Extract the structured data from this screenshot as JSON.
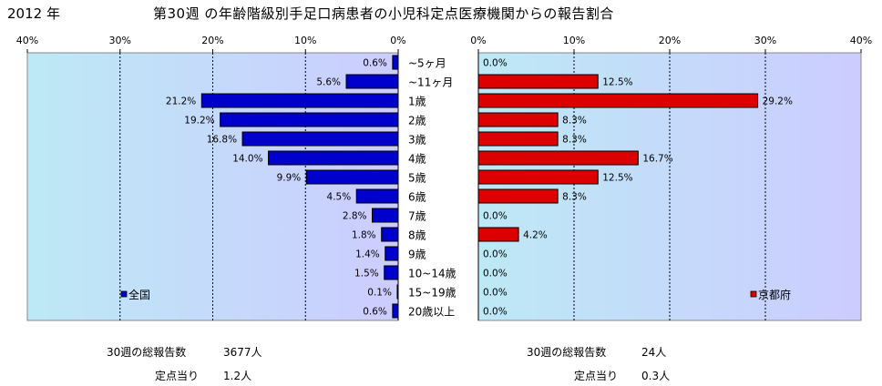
{
  "header": {
    "year": "2012 年",
    "title": "第30週 の年齢階級別手足口病患者の小児科定点医療機関からの報告割合"
  },
  "chart_data": [
    {
      "type": "bar",
      "orientation": "horizontal",
      "direction": "reversed",
      "categories": [
        "~5ヶ月",
        "~11ヶ月",
        "1歳",
        "2歳",
        "3歳",
        "4歳",
        "5歳",
        "6歳",
        "7歳",
        "8歳",
        "9歳",
        "10~14歳",
        "15~19歳",
        "20歳以上"
      ],
      "series": [
        {
          "name": "全国",
          "values": [
            0.6,
            5.6,
            21.2,
            19.2,
            16.8,
            14.0,
            9.9,
            4.5,
            2.8,
            1.8,
            1.4,
            1.5,
            0.1,
            0.6
          ],
          "labels": [
            "0.6%",
            "5.6%",
            "21.2%",
            "19.2%",
            "16.8%",
            "14.0%",
            "9.9%",
            "4.5%",
            "2.8%",
            "1.8%",
            "1.4%",
            "1.5%",
            "0.1%",
            "0.6%"
          ],
          "color": "#0000cc"
        }
      ],
      "xlim": [
        0,
        40
      ],
      "xticks": [
        "40%",
        "30%",
        "20%",
        "10%",
        "0%"
      ],
      "grid": true,
      "legend": "bottom-left",
      "plot_background": [
        "#bde9f5",
        "#ccccff"
      ]
    },
    {
      "type": "bar",
      "orientation": "horizontal",
      "categories": [
        "~5ヶ月",
        "~11ヶ月",
        "1歳",
        "2歳",
        "3歳",
        "4歳",
        "5歳",
        "6歳",
        "7歳",
        "8歳",
        "9歳",
        "10~14歳",
        "15~19歳",
        "20歳以上"
      ],
      "series": [
        {
          "name": "京都府",
          "values": [
            0.0,
            12.5,
            29.2,
            8.3,
            8.3,
            16.7,
            12.5,
            8.3,
            0.0,
            4.2,
            0.0,
            0.0,
            0.0,
            0.0
          ],
          "labels": [
            "0.0%",
            "12.5%",
            "29.2%",
            "8.3%",
            "8.3%",
            "16.7%",
            "12.5%",
            "8.3%",
            "0.0%",
            "4.2%",
            "0.0%",
            "0.0%",
            "0.0%",
            "0.0%"
          ],
          "color": "#dd0000"
        }
      ],
      "xlim": [
        0,
        40
      ],
      "xticks": [
        "0%",
        "10%",
        "20%",
        "30%",
        "40%"
      ],
      "grid": true,
      "legend": "bottom-right",
      "plot_background": [
        "#bde9f5",
        "#ccccff"
      ]
    }
  ],
  "summary": {
    "national": {
      "total_label": "30週の総報告数",
      "total_value": "3677人",
      "per_label": "定点当り",
      "per_value": "1.2人"
    },
    "kyoto": {
      "total_label": "30週の総報告数",
      "total_value": "24人",
      "per_label": "定点当り",
      "per_value": "0.3人"
    }
  }
}
